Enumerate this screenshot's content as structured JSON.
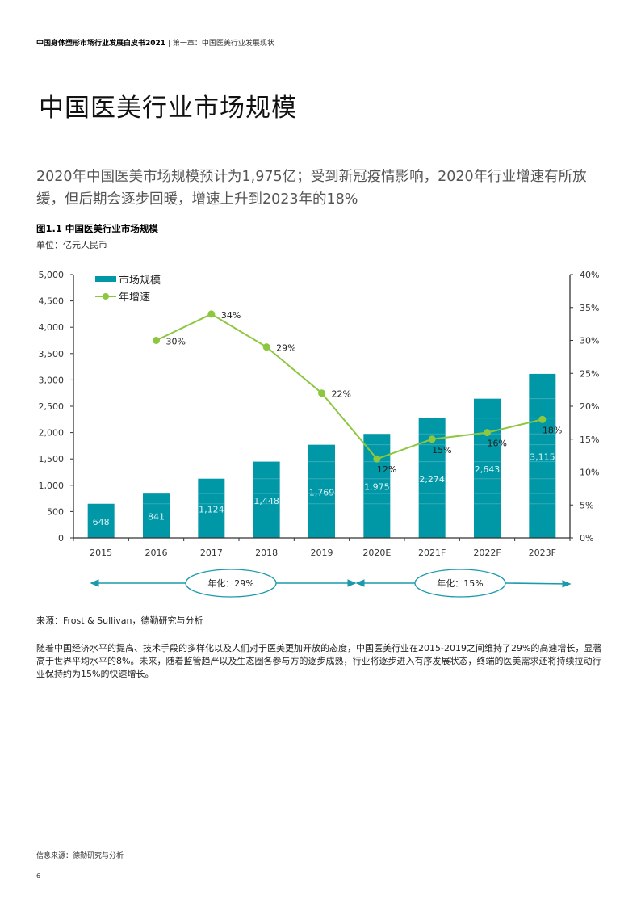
{
  "header": {
    "report_title": "中国身体塑形市场行业发展白皮书2021",
    "separator": " | ",
    "chapter": "第一章：中国医美行业发展现状"
  },
  "page_title": "中国医美行业市场规模",
  "subtitle": "2020年中国医美市场规模预计为1,975亿；受到新冠疫情影响，2020年行业增速有所放缓，但后期会逐步回暖，增速上升到2023年的18%",
  "figure": {
    "title": "图1.1 中国医美行业市场规模",
    "unit": "单位：亿元人民币"
  },
  "colors": {
    "bar": "#0097A7",
    "bar_inner_line": "#4DB6C1",
    "line": "#8DC63F",
    "axis": "#333333",
    "arrow": "#1A9AAA"
  },
  "chart_data": {
    "type": "bar",
    "categories": [
      "2015",
      "2016",
      "2017",
      "2018",
      "2019",
      "2020E",
      "2021F",
      "2022F",
      "2023F"
    ],
    "series": [
      {
        "name": "市场规模",
        "type": "bar",
        "axis": "left",
        "values": [
          648,
          841,
          1124,
          1448,
          1769,
          1975,
          2274,
          2643,
          3115
        ],
        "labels": [
          "648",
          "841",
          "1,124",
          "1,448",
          "1,769",
          "1,975",
          "2,274",
          "2,643",
          "3,115"
        ]
      },
      {
        "name": "年增速",
        "type": "line",
        "axis": "right",
        "values": [
          null,
          30,
          34,
          29,
          22,
          12,
          15,
          16,
          18
        ],
        "labels": [
          "",
          "30%",
          "34%",
          "29%",
          "22%",
          "12%",
          "15%",
          "16%",
          "18%"
        ]
      }
    ],
    "y_left": {
      "range": [
        0,
        5000
      ],
      "ticks": [
        "0",
        "500",
        "1,000",
        "1,500",
        "2,000",
        "2,500",
        "3,000",
        "3,500",
        "4,000",
        "4,500",
        "5,000"
      ]
    },
    "y_right": {
      "range": [
        0,
        40
      ],
      "ticks": [
        "0%",
        "5%",
        "10%",
        "15%",
        "20%",
        "25%",
        "30%",
        "35%",
        "40%"
      ]
    },
    "legend": {
      "position": "top-left",
      "items": [
        "市场规模",
        "年增速"
      ]
    },
    "grid": false,
    "annotations": [
      {
        "text": "年化：29%",
        "span": [
          "2015",
          "2019"
        ]
      },
      {
        "text": "年化：15%",
        "span": [
          "2020E",
          "2023F"
        ]
      }
    ]
  },
  "source": "来源：Frost & Sullivan，德勤研究与分析",
  "body_text": "随着中国经济水平的提高、技术手段的多样化以及人们对于医美更加开放的态度，中国医美行业在2015-2019之间维持了29%的高速增长，显著高于世界平均水平的8%。未来，随着监管趋严以及生态圈各参与方的逐步成熟，行业将逐步进入有序发展状态，终端的医美需求还将持续拉动行业保持约为15%的快速增长。",
  "footer_note": "信息来源：德勤研究与分析",
  "page_number": "6"
}
